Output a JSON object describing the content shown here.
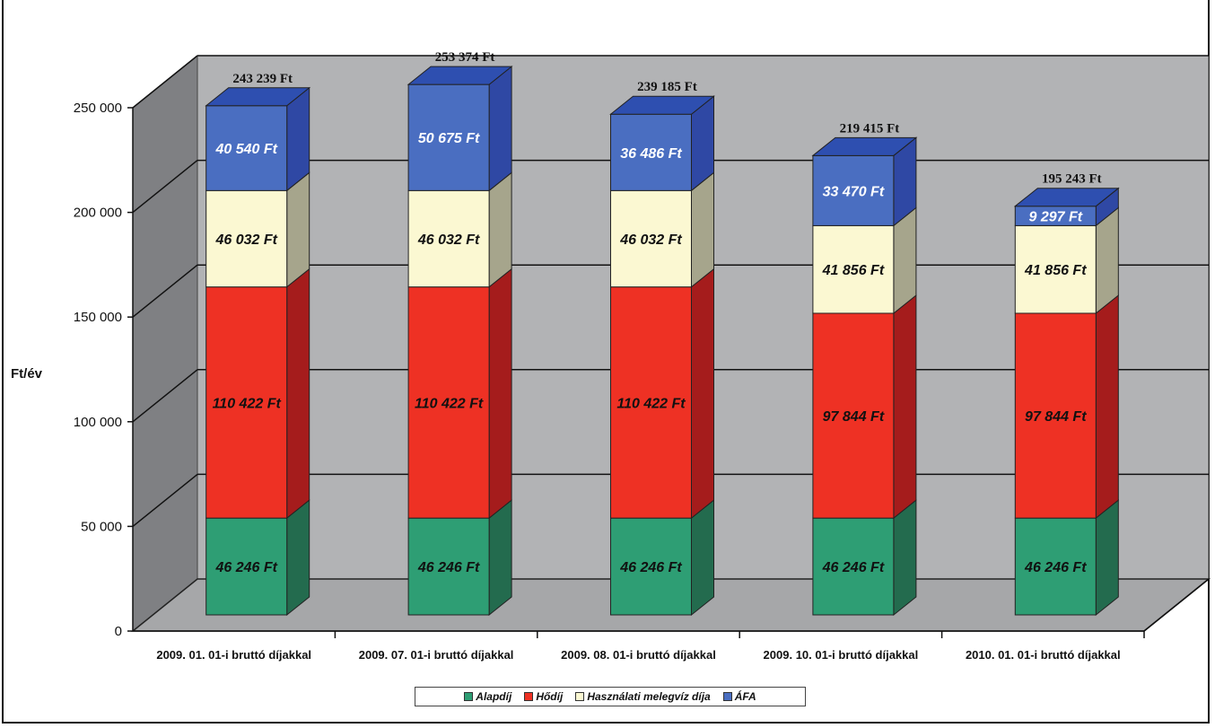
{
  "chart_data": {
    "type": "bar",
    "stacked": true,
    "three_d": true,
    "title": "",
    "ylabel": "Ft/év",
    "xlabel": "",
    "ylim": [
      0,
      250000
    ],
    "yticks": [
      "0",
      "50 000",
      "100 000",
      "150 000",
      "200 000",
      "250 000"
    ],
    "grid": true,
    "legend_position": "bottom",
    "categories": [
      "2009. 01. 01-i bruttó díjakkal",
      "2009. 07. 01-i bruttó díjakkal",
      "2009. 08. 01-i bruttó díjakkal",
      "2009. 10. 01-i bruttó díjakkal",
      "2010. 01. 01-i bruttó díjakkal"
    ],
    "series": [
      {
        "name": "Alapdíj",
        "color": "#2e9e74",
        "side_color": "#236b4e",
        "top_color": "#2e9e74",
        "label_color": "#111111",
        "values": [
          46246,
          46246,
          46246,
          46246,
          46246
        ],
        "labels": [
          "46 246 Ft",
          "46 246 Ft",
          "46 246 Ft",
          "46 246 Ft",
          "46 246 Ft"
        ]
      },
      {
        "name": "Hődíj",
        "color": "#ee3124",
        "side_color": "#a51c1c",
        "top_color": "#ee3124",
        "label_color": "#111111",
        "values": [
          110422,
          110422,
          110422,
          97844,
          97844
        ],
        "labels": [
          "110 422 Ft",
          "110 422 Ft",
          "110 422 Ft",
          "97 844 Ft",
          "97 844 Ft"
        ]
      },
      {
        "name": "Használati melegvíz díja",
        "color": "#fbf8d2",
        "side_color": "#a6a58c",
        "top_color": "#fbf8d2",
        "label_color": "#111111",
        "values": [
          46032,
          46032,
          46032,
          41856,
          41856
        ],
        "labels": [
          "46 032 Ft",
          "46 032 Ft",
          "46 032 Ft",
          "41 856 Ft",
          "41 856 Ft"
        ]
      },
      {
        "name": "ÁFA",
        "color": "#4a6ec1",
        "side_color": "#2f48a4",
        "top_color": "#2e4fb0",
        "label_color": "#ffffff",
        "values": [
          40540,
          50675,
          36486,
          33470,
          9297
        ],
        "labels": [
          "40 540 Ft",
          "50 675 Ft",
          "36 486 Ft",
          "33 470 Ft",
          "9 297 Ft"
        ]
      }
    ],
    "totals": [
      "243 239 Ft",
      "253 374 Ft",
      "239 185 Ft",
      "219 415 Ft",
      "195 243 Ft"
    ],
    "colors": {
      "back_wall": "#b2b3b5",
      "side_wall": "#7f8083",
      "floor": "#a6a7a9",
      "grid": "#111111"
    }
  },
  "legend": {
    "items": [
      {
        "label": "Alapdíj",
        "color": "#2e9e74"
      },
      {
        "label": "Hődíj",
        "color": "#ee3124"
      },
      {
        "label": "Használati melegvíz díja",
        "color": "#fbf8d2"
      },
      {
        "label": "ÁFA",
        "color": "#4a6ec1"
      }
    ]
  }
}
